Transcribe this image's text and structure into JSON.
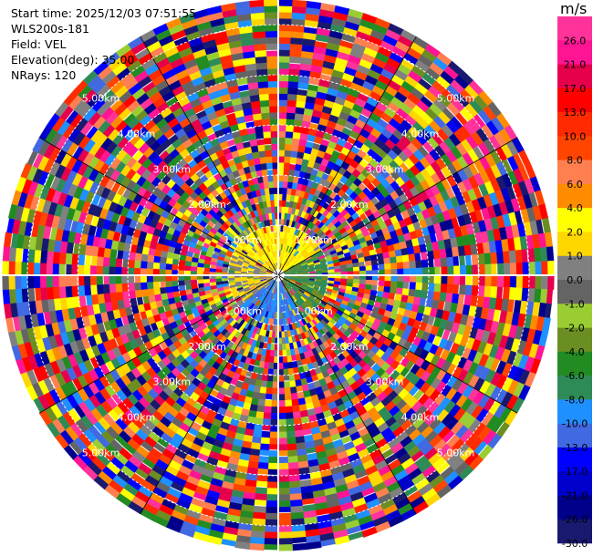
{
  "header": {
    "start_time": "Start time: 2025/12/03 07:51:55",
    "site": "WLS200s-181",
    "field": "Field: VEL",
    "elevation": "Elevation(deg): 35.00",
    "nrays": "NRays: 120"
  },
  "colorbar": {
    "unit": "m/s",
    "ticks": [
      "26.0",
      "21.0",
      "17.0",
      "13.0",
      "10.0",
      "8.0",
      "6.0",
      "4.0",
      "2.0",
      "1.0",
      "0.0",
      "-1.0",
      "-2.0",
      "-4.0",
      "-6.0",
      "-8.0",
      "-10.0",
      "-13.0",
      "-17.0",
      "-21.0",
      "-26.0",
      "-30.0"
    ],
    "colors": [
      "#ff3399",
      "#ff1493",
      "#e6004c",
      "#ff0000",
      "#ff2a00",
      "#ff4500",
      "#ff7f50",
      "#ff8c00",
      "#ffff00",
      "#ffd700",
      "#808080",
      "#646464",
      "#9acd32",
      "#6b8e23",
      "#228b22",
      "#2e8b57",
      "#1e90ff",
      "#4169e1",
      "#0000ff",
      "#0000cd",
      "#00008b",
      "#191970"
    ]
  },
  "chart_data": {
    "type": "heatmap",
    "title": "",
    "projection": "polar PPI (plan position indicator)",
    "field": "VEL",
    "units": "m/s",
    "nrays": 120,
    "range_rings_km": [
      1.0,
      2.0,
      3.0,
      4.0,
      5.0
    ],
    "ring_label_text": [
      "1.00km",
      "2.00km",
      "3.00km",
      "4.00km",
      "5.00km"
    ],
    "max_range_km": 5.6,
    "value_range": [
      -30.0,
      26.0
    ],
    "colorbar_levels": [
      26.0,
      21.0,
      17.0,
      13.0,
      10.0,
      8.0,
      6.0,
      4.0,
      2.0,
      1.0,
      0.0,
      -1.0,
      -2.0,
      -4.0,
      -6.0,
      -8.0,
      -10.0,
      -13.0,
      -17.0,
      -21.0,
      -26.0,
      -30.0
    ],
    "near_field": {
      "north_sector_dominant": [
        1.0,
        2.0
      ],
      "south_east_sector_dominant": [
        -8.0,
        -4.0
      ],
      "south_sector_dominant": [
        -13.0,
        -10.0
      ],
      "west_sector_dominant": [
        0.0,
        1.0
      ]
    },
    "far_field": "noise spread across the full colour scale"
  }
}
